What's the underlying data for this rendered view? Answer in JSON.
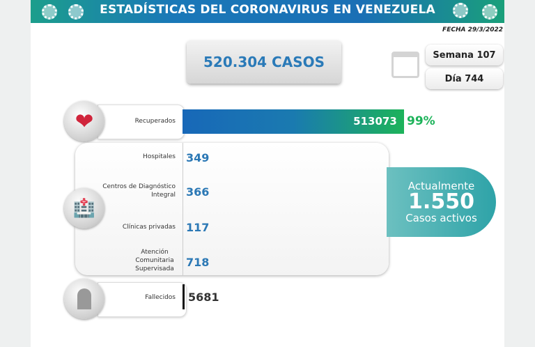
{
  "header": {
    "title": "ESTADÍSTICAS DEL CORONAVIRUS EN VENEZUELA",
    "date": "FECHA 29/3/2022"
  },
  "total_cases": "520.304 CASOS",
  "week": "Semana 107",
  "day": "Día 744",
  "recovered": {
    "label": "Recuperados",
    "value": "513073",
    "percent": "99%",
    "fraction": 0.99
  },
  "locations": [
    {
      "label": "Hospitales",
      "value": "349"
    },
    {
      "label": "Centros de Diagnóstico Integral",
      "value": "366"
    },
    {
      "label": "Clínicas privadas",
      "value": "117"
    },
    {
      "label": "Atención Comunitaria Supervisada",
      "value": "718"
    }
  ],
  "active": {
    "line1": "Actualmente",
    "value": "1.550",
    "line2": "Casos activos"
  },
  "deceased": {
    "label": "Fallecidos",
    "value": "5681"
  },
  "colors": {
    "accent_blue": "#2b78b5",
    "recovered_green": "#1db35a",
    "active_teal": "#2ea3a8"
  }
}
